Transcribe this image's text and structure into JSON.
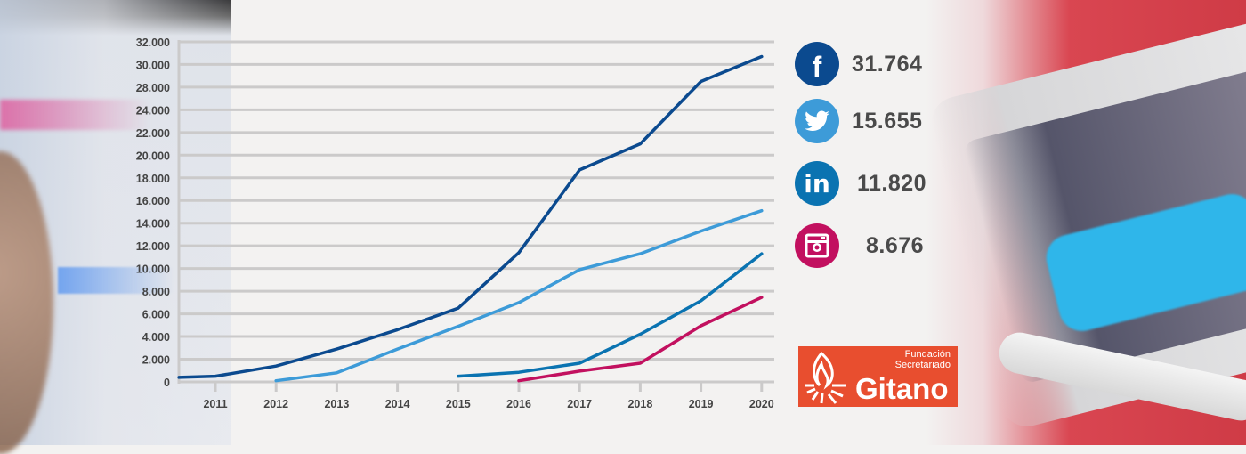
{
  "chart_data": {
    "type": "line",
    "title": "",
    "xlabel": "",
    "ylabel": "",
    "x": [
      2011,
      2012,
      2013,
      2014,
      2015,
      2016,
      2017,
      2018,
      2019,
      2020
    ],
    "x_tick_labels": [
      "2011",
      "2012",
      "2013",
      "2014",
      "2015",
      "2016",
      "2017",
      "2018",
      "2019",
      "2020"
    ],
    "y_ticks": [
      0,
      2000,
      4000,
      6000,
      8000,
      10000,
      12000,
      14000,
      16000,
      18000,
      20000,
      22000,
      24000,
      28000,
      30000,
      32000
    ],
    "y_tick_labels": [
      "0",
      "2.000",
      "4.000",
      "6.000",
      "8.000",
      "10.000",
      "12.000",
      "14.000",
      "16.000",
      "18.000",
      "20.000",
      "22.000",
      "24.000",
      "28.000",
      "30.000",
      "32.000"
    ],
    "ylim": [
      0,
      32000
    ],
    "grid": true,
    "series": [
      {
        "key": "facebook",
        "color": "#0b4a8f",
        "points": [
          [
            2010.4,
            400
          ],
          [
            2011,
            500
          ],
          [
            2012,
            1400
          ],
          [
            2013,
            2900
          ],
          [
            2014,
            4600
          ],
          [
            2015,
            6500
          ],
          [
            2016,
            11400
          ],
          [
            2017,
            18700
          ],
          [
            2018,
            21000
          ],
          [
            2019,
            28500
          ],
          [
            2020,
            30700
          ]
        ]
      },
      {
        "key": "twitter",
        "color": "#3d9bd8",
        "points": [
          [
            2012,
            100
          ],
          [
            2013,
            800
          ],
          [
            2014,
            2900
          ],
          [
            2015,
            4900
          ],
          [
            2016,
            7000
          ],
          [
            2017,
            9900
          ],
          [
            2018,
            11300
          ],
          [
            2019,
            13300
          ],
          [
            2020,
            15100
          ]
        ]
      },
      {
        "key": "linkedin",
        "color": "#0a73b1",
        "points": [
          [
            2015,
            500
          ],
          [
            2016,
            850
          ],
          [
            2017,
            1650
          ],
          [
            2018,
            4200
          ],
          [
            2019,
            7150
          ],
          [
            2020,
            11300
          ]
        ]
      },
      {
        "key": "instagram",
        "color": "#c2105f",
        "points": [
          [
            2016,
            100
          ],
          [
            2017,
            950
          ],
          [
            2018,
            1650
          ],
          [
            2019,
            4950
          ],
          [
            2020,
            7450
          ]
        ]
      }
    ]
  },
  "legend": [
    {
      "icon": "facebook-icon",
      "color": "#0b4a8f",
      "value": "31.764"
    },
    {
      "icon": "twitter-icon",
      "color": "#3d9bd8",
      "value": "15.655"
    },
    {
      "icon": "linkedin-icon",
      "color": "#0a73b1",
      "value": "11.820"
    },
    {
      "icon": "instagram-icon",
      "color": "#c2105f",
      "value": "8.676"
    }
  ],
  "logo": {
    "line1": "Fundación",
    "line2": "Secretariado",
    "line3": "Gitano",
    "color": "#e84e2f"
  }
}
